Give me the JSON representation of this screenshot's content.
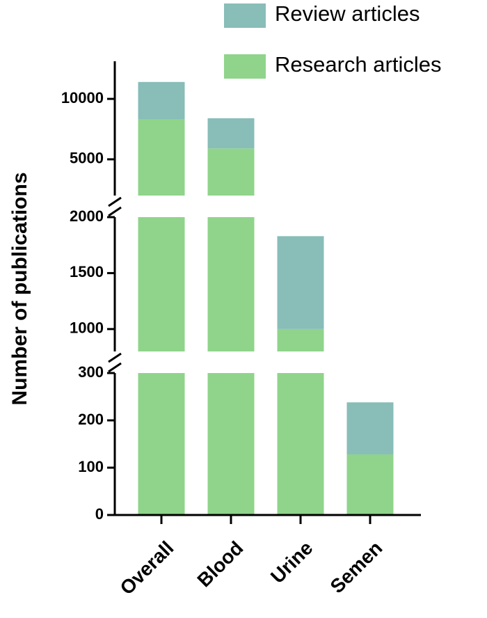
{
  "chart_data": {
    "type": "stacked_bar",
    "y_label": "Number of publications",
    "categories": [
      "Overall",
      "Blood",
      "Urine",
      "Semen"
    ],
    "series": [
      {
        "name": "Research articles",
        "color": "#8fd48a",
        "values": [
          8300,
          5900,
          1000,
          128
        ]
      },
      {
        "name": "Review articles",
        "color": "#88bdb8",
        "values": [
          3100,
          2500,
          830,
          110
        ]
      }
    ],
    "y_segments": [
      {
        "ylim": [
          0,
          300
        ],
        "yticks": [
          0,
          100,
          200,
          300
        ]
      },
      {
        "ylim": [
          800,
          2000
        ],
        "yticks": [
          1000,
          1500,
          2000
        ]
      },
      {
        "ylim": [
          2000,
          13000
        ],
        "yticks": [
          5000,
          10000
        ]
      }
    ]
  }
}
